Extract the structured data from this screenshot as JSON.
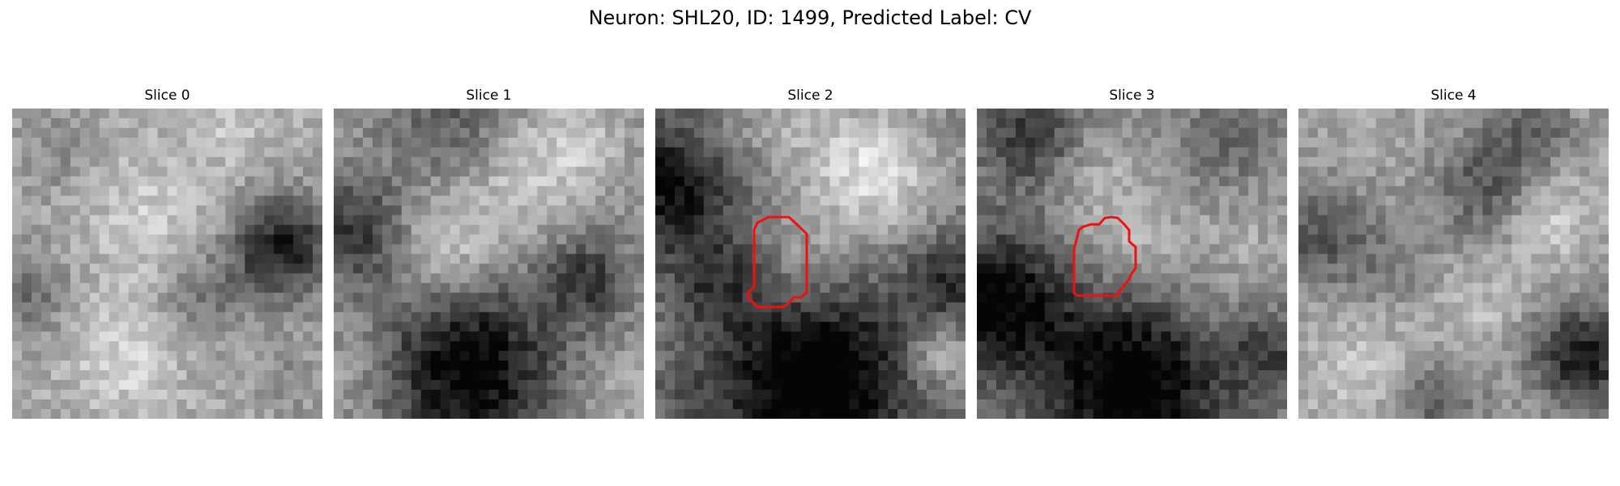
{
  "figure": {
    "title": "Neuron: SHL20, ID: 1499, Predicted Label: CV"
  },
  "slices": [
    {
      "label": "Slice 0",
      "has_roi": false
    },
    {
      "label": "Slice 1",
      "has_roi": false
    },
    {
      "label": "Slice 2",
      "has_roi": true
    },
    {
      "label": "Slice 3",
      "has_roi": true
    },
    {
      "label": "Slice 4",
      "has_roi": false
    }
  ],
  "colors": {
    "roi_outline": "#ee1111",
    "colormap": "grayscale"
  }
}
